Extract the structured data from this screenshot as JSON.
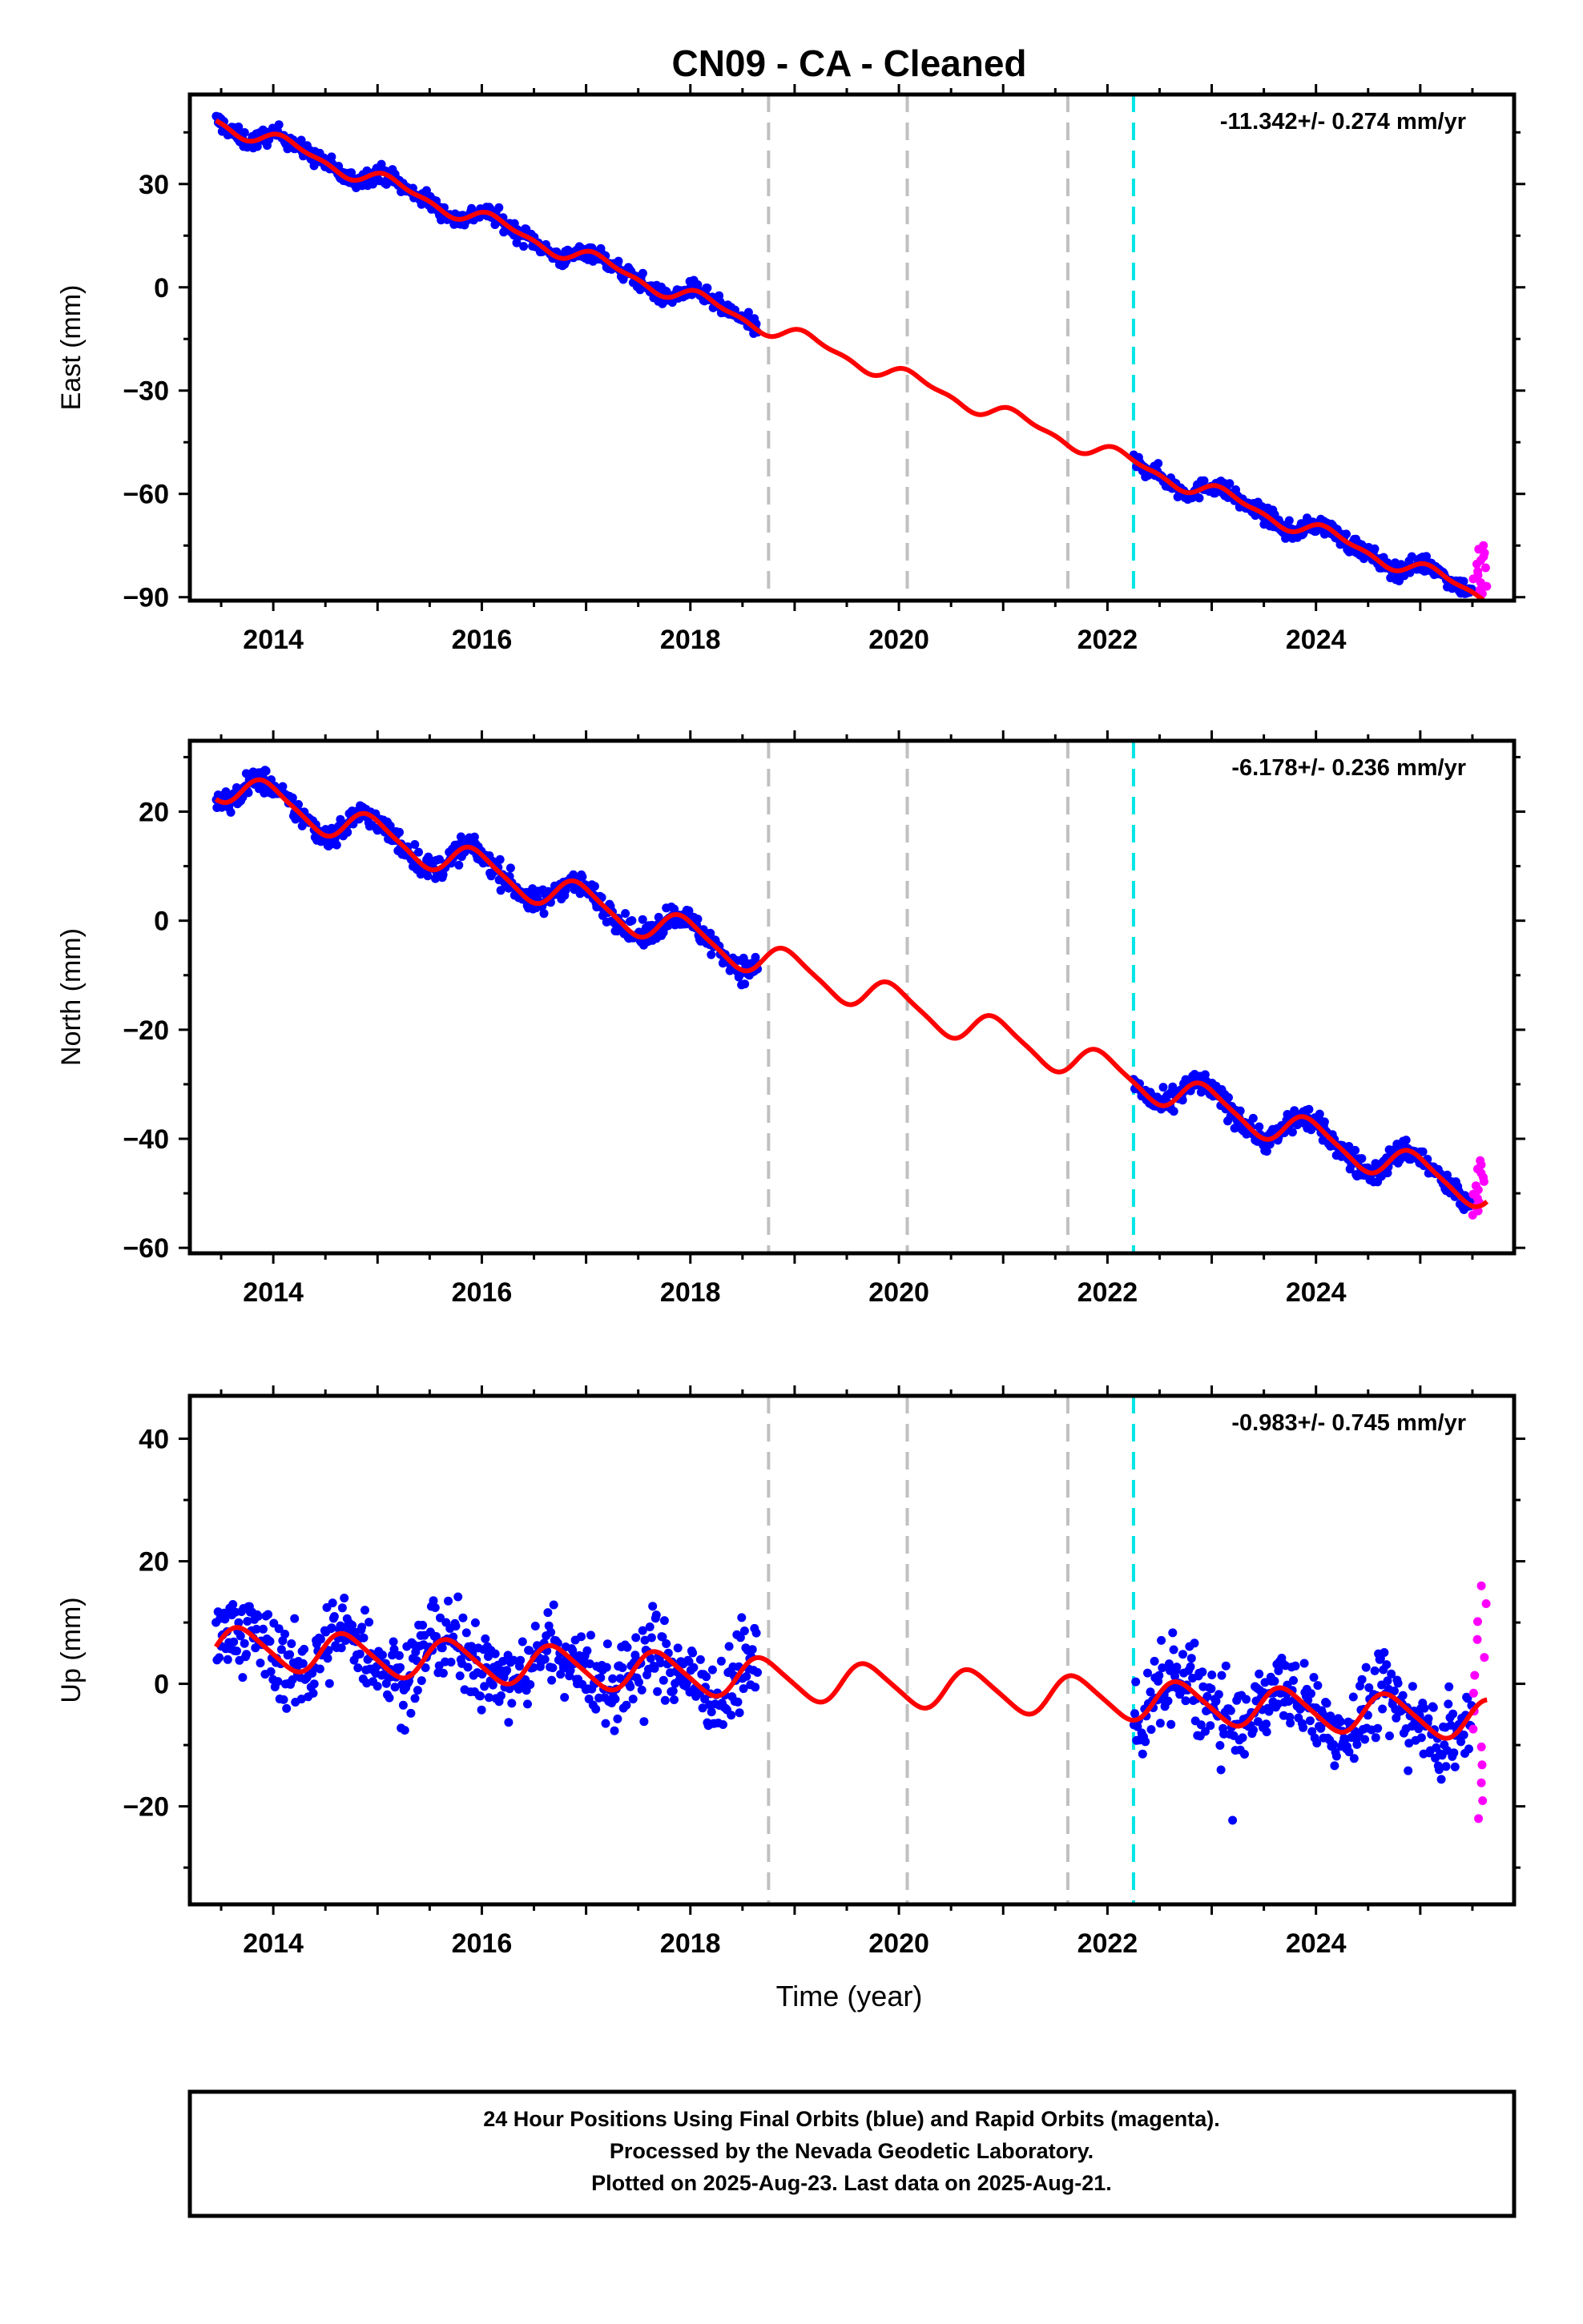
{
  "title": "CN09  - CA - Cleaned",
  "xlabel": "Time (year)",
  "footer": {
    "lines": [
      "24 Hour Positions Using Final Orbits (blue) and Rapid Orbits (magenta).",
      "Processed by the Nevada Geodetic Laboratory.",
      "Plotted on 2025-Aug-23. Last data on 2025-Aug-21."
    ]
  },
  "colors": {
    "final_orbits": "#0000ff",
    "rapid_orbits": "#ff00ff",
    "model_fit": "#ff0000",
    "equipment_change": "#c0c0c0",
    "cyan_marker": "#00e5e5"
  },
  "chart_data": [
    {
      "type": "scatter",
      "ylabel": "East (mm)",
      "rate_label": "-11.342+/- 0.274 mm/yr",
      "xlim": [
        2013.2,
        2025.9
      ],
      "ylim": [
        -91,
        56
      ],
      "x_ticks": [
        2014,
        2016,
        2018,
        2020,
        2022,
        2024
      ],
      "y_ticks": [
        30,
        0,
        -30,
        -60,
        -90
      ],
      "y_tick_labels": [
        "30",
        "0",
        "−30",
        "−60",
        "−90"
      ],
      "data_gap": [
        2018.65,
        2022.25
      ],
      "vertical_lines": {
        "gray": [
          2018.75,
          2020.08,
          2021.62
        ],
        "cyan": [
          2022.25
        ]
      },
      "series": [
        {
          "role": "model",
          "rate": -11.342,
          "intercept": 48,
          "annual_amplitude": 2.2,
          "semiannual_amplitude": 0.9,
          "phase": 0.1
        },
        {
          "role": "final-orbits",
          "noise": 1.8,
          "x_range": [
            [
              2013.45,
              2018.65
            ],
            [
              2022.25,
              2025.5
            ]
          ],
          "points": 900
        },
        {
          "role": "rapid-orbits",
          "x_range": [
            [
              2025.5,
              2025.64
            ]
          ],
          "y_range": [
            -89,
            -75
          ],
          "points": 14
        }
      ]
    },
    {
      "type": "scatter",
      "ylabel": "North (mm)",
      "rate_label": "-6.178+/- 0.236 mm/yr",
      "xlim": [
        2013.2,
        2025.9
      ],
      "ylim": [
        -61,
        33
      ],
      "x_ticks": [
        2014,
        2016,
        2018,
        2020,
        2022,
        2024
      ],
      "y_ticks": [
        20,
        0,
        -20,
        -40,
        -60
      ],
      "y_tick_labels": [
        "20",
        "0",
        "−20",
        "−40",
        "−60"
      ],
      "data_gap": [
        2018.65,
        2022.25
      ],
      "vertical_lines": {
        "gray": [
          2018.75,
          2020.08,
          2021.62
        ],
        "cyan": [
          2022.25
        ]
      },
      "series": [
        {
          "role": "model",
          "rate": -6.178,
          "intercept": 25,
          "annual_amplitude": 3.0,
          "semiannual_amplitude": 0.6,
          "phase": 0.3
        },
        {
          "role": "final-orbits",
          "noise": 1.6,
          "x_range": [
            [
              2013.45,
              2018.65
            ],
            [
              2022.25,
              2025.5
            ]
          ],
          "points": 900
        },
        {
          "role": "rapid-orbits",
          "x_range": [
            [
              2025.5,
              2025.64
            ]
          ],
          "y_range": [
            -54,
            -44
          ],
          "points": 14
        }
      ]
    },
    {
      "type": "scatter",
      "ylabel": "Up (mm)",
      "rate_label": "-0.983+/- 0.745 mm/yr",
      "xlim": [
        2013.2,
        2025.9
      ],
      "ylim": [
        -36,
        47
      ],
      "x_ticks": [
        2014,
        2016,
        2018,
        2020,
        2022,
        2024
      ],
      "y_ticks": [
        40,
        20,
        0,
        -20
      ],
      "y_tick_labels": [
        "40",
        "20",
        "0",
        "−20"
      ],
      "data_gap": [
        2018.65,
        2022.25
      ],
      "vertical_lines": {
        "gray": [
          2018.75,
          2020.08,
          2021.62
        ],
        "cyan": [
          2022.25
        ]
      },
      "series": [
        {
          "role": "model",
          "rate": -0.983,
          "intercept": 6,
          "annual_amplitude": 3.2,
          "semiannual_amplitude": 0.5,
          "phase": 0.55
        },
        {
          "role": "final-orbits",
          "noise": 4.5,
          "x_range": [
            [
              2013.45,
              2018.65
            ],
            [
              2022.25,
              2025.5
            ]
          ],
          "points": 900
        },
        {
          "role": "rapid-orbits",
          "x_range": [
            [
              2025.5,
              2025.64
            ]
          ],
          "y_range": [
            -22,
            16
          ],
          "points": 14
        }
      ]
    }
  ]
}
